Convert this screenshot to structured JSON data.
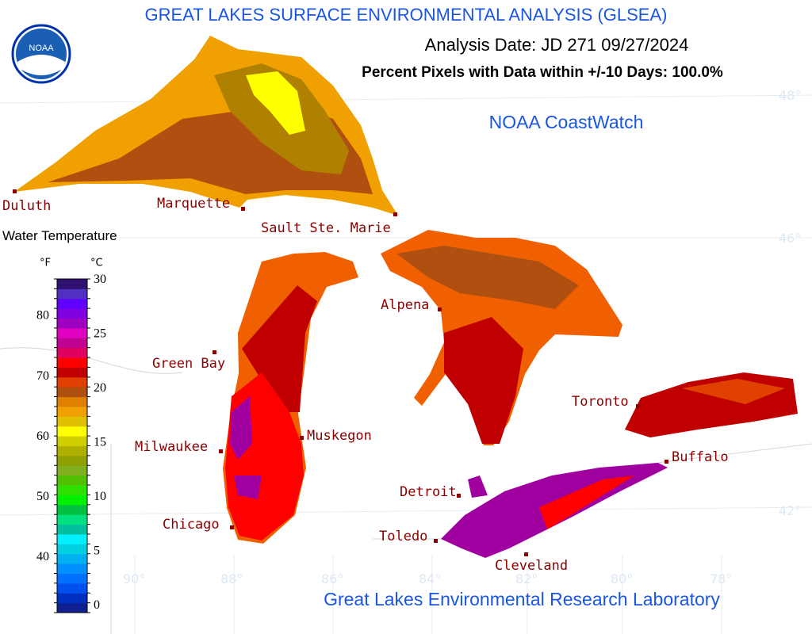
{
  "header": {
    "title": "GREAT LAKES SURFACE ENVIRONMENTAL ANALYSIS (GLSEA)",
    "analysis_date": "Analysis Date:  JD 271 09/27/2024",
    "percent_pixels": "Percent Pixels with Data within +/-10 Days: 100.0%",
    "credit": "NOAA CoastWatch",
    "footer": "Great Lakes Environmental Research Laboratory",
    "logo": "NOAA"
  },
  "cities": [
    "Duluth",
    "Marquette",
    "Sault Ste. Marie",
    "Alpena",
    "Green Bay",
    "Milwaukee",
    "Muskegon",
    "Chicago",
    "Detroit",
    "Toledo",
    "Cleveland",
    "Toronto",
    "Buffalo"
  ],
  "grid_labels": {
    "lat": [
      "48°",
      "46°",
      "42°"
    ],
    "lon": [
      "90°",
      "88°",
      "86°",
      "84°",
      "82°",
      "80°",
      "78°"
    ]
  },
  "legend": {
    "title": "Water Temperature",
    "f_unit": "°F",
    "c_unit": "°C",
    "f_ticks": [
      40,
      50,
      60,
      70,
      80
    ],
    "c_ticks": [
      0,
      5,
      10,
      15,
      20,
      25,
      30
    ],
    "colors": [
      "#102090",
      "#0030c0",
      "#0050f0",
      "#0070ff",
      "#0090ff",
      "#00b0f0",
      "#00d0e0",
      "#00f0ff",
      "#00c0a0",
      "#00e080",
      "#00c040",
      "#00f000",
      "#30e000",
      "#50c000",
      "#80b020",
      "#90a000",
      "#b0b000",
      "#d0d000",
      "#ffff00",
      "#e0c000",
      "#f0a000",
      "#e08000",
      "#b05010",
      "#e04000",
      "#c00000",
      "#ff0000",
      "#e00060",
      "#c00090",
      "#e000c0",
      "#a000c0",
      "#8000e0",
      "#6000ff",
      "#5030c0",
      "#301070"
    ]
  }
}
